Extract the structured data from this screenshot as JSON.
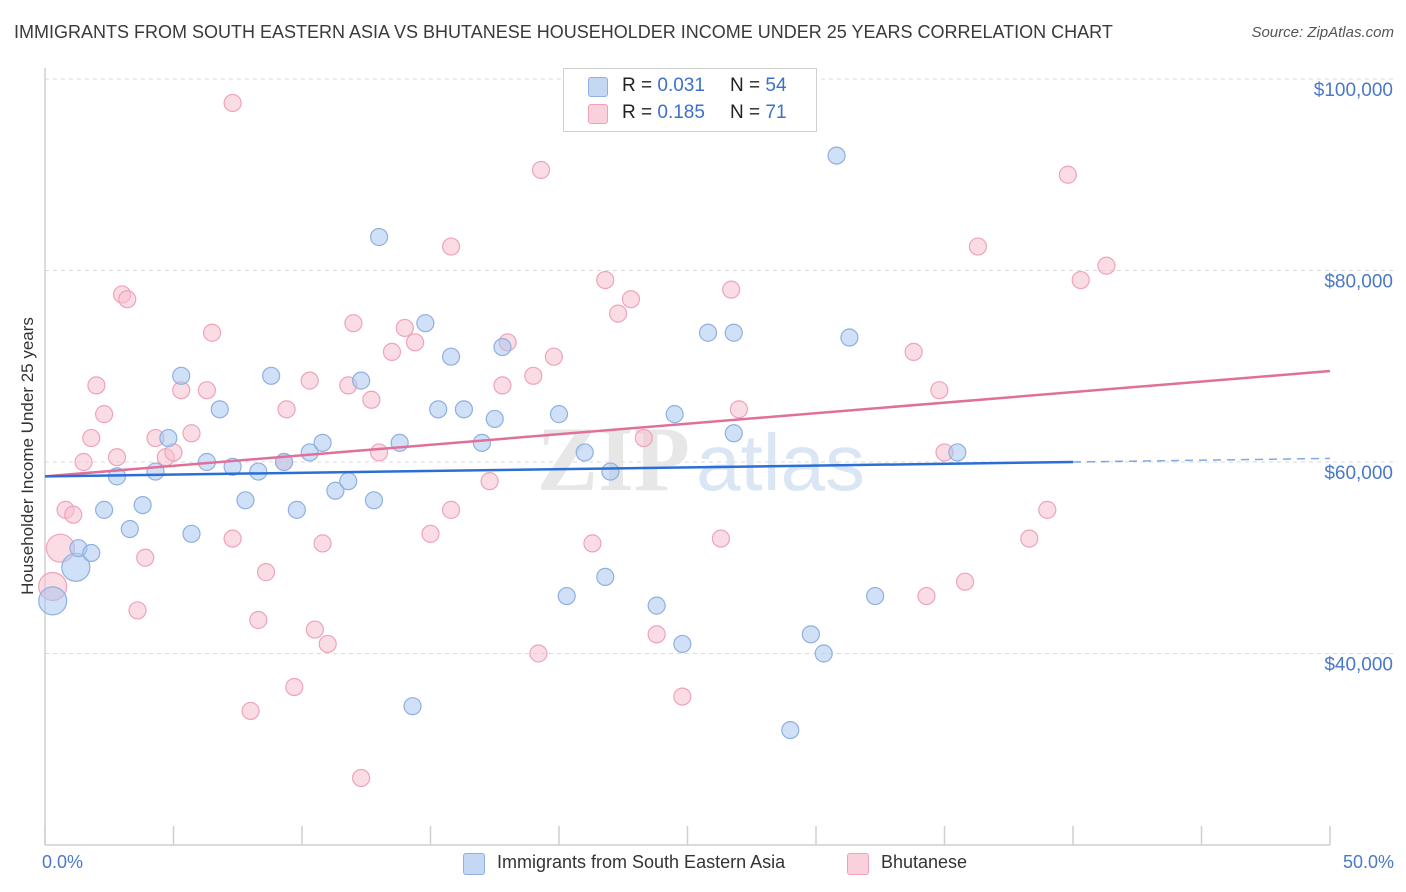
{
  "title": "IMMIGRANTS FROM SOUTH EASTERN ASIA VS BHUTANESE HOUSEHOLDER INCOME UNDER 25 YEARS CORRELATION CHART",
  "source": "Source: ZipAtlas.com",
  "watermark": "ZIPatlas",
  "colors": {
    "blue_fill": "#a9c6ee",
    "blue_stroke": "#8fb0e0",
    "blue_line": "#2b6fd6",
    "pink_fill": "#f6bfd0",
    "pink_stroke": "#efa3bb",
    "pink_line": "#e0709a",
    "tick_label": "#4a78c9",
    "grid": "#d9d9d9"
  },
  "legend": {
    "rows": [
      {
        "series": "blue",
        "r_label": "R =",
        "r_value": "0.031",
        "n_label": "N =",
        "n_value": "54"
      },
      {
        "series": "pink",
        "r_label": "R =",
        "r_value": "0.185",
        "n_label": "N =",
        "n_value": "71"
      }
    ]
  },
  "bottom_legend": [
    {
      "series": "blue",
      "label": "Immigrants from South Eastern Asia"
    },
    {
      "series": "pink",
      "label": "Bhutanese"
    }
  ],
  "chart_data": {
    "type": "scatter",
    "title": "IMMIGRANTS FROM SOUTH EASTERN ASIA VS BHUTANESE HOUSEHOLDER INCOME UNDER 25 YEARS CORRELATION CHART",
    "xlabel": "",
    "ylabel": "Householder Income Under 25 years",
    "xlim": [
      0,
      50
    ],
    "ylim": [
      20000,
      102000
    ],
    "x_tick_labels": [
      "0.0%",
      "50.0%"
    ],
    "y_ticks": [
      40000,
      60000,
      80000,
      100000
    ],
    "y_tick_labels": [
      "$40,000",
      "$60,000",
      "$80,000",
      "$100,000"
    ],
    "grid": true,
    "legend_position": "top-center",
    "series": [
      {
        "name": "Immigrants from South Eastern Asia",
        "color_key": "blue",
        "R": 0.031,
        "N": 54,
        "trend": {
          "x": [
            0,
            40
          ],
          "y": [
            58500,
            60000
          ],
          "dashed_to_x": 50
        },
        "points": [
          [
            0.3,
            45500,
            "large"
          ],
          [
            1.2,
            49000,
            "large"
          ],
          [
            1.3,
            51000
          ],
          [
            1.8,
            50500
          ],
          [
            2.3,
            55000
          ],
          [
            2.8,
            58500
          ],
          [
            3.3,
            53000
          ],
          [
            3.8,
            55500
          ],
          [
            4.3,
            59000
          ],
          [
            4.8,
            62500
          ],
          [
            5.3,
            69000
          ],
          [
            5.7,
            52500
          ],
          [
            6.3,
            60000
          ],
          [
            6.8,
            65500
          ],
          [
            7.3,
            59500
          ],
          [
            7.8,
            56000
          ],
          [
            8.3,
            59000
          ],
          [
            8.8,
            69000
          ],
          [
            9.3,
            60000
          ],
          [
            9.8,
            55000
          ],
          [
            10.3,
            61000
          ],
          [
            10.8,
            62000
          ],
          [
            11.3,
            57000
          ],
          [
            11.8,
            58000
          ],
          [
            12.3,
            68500
          ],
          [
            12.8,
            56000
          ],
          [
            13.0,
            83500
          ],
          [
            13.8,
            62000
          ],
          [
            14.3,
            34500
          ],
          [
            14.8,
            74500
          ],
          [
            15.3,
            65500
          ],
          [
            15.8,
            71000
          ],
          [
            16.3,
            65500
          ],
          [
            17.0,
            62000
          ],
          [
            17.5,
            64500
          ],
          [
            17.8,
            72000
          ],
          [
            20.0,
            65000
          ],
          [
            20.3,
            46000
          ],
          [
            21.0,
            61000
          ],
          [
            21.8,
            48000
          ],
          [
            22.0,
            59000
          ],
          [
            23.8,
            45000
          ],
          [
            24.5,
            65000
          ],
          [
            24.8,
            41000
          ],
          [
            25.8,
            73500
          ],
          [
            26.8,
            63000
          ],
          [
            26.8,
            73500
          ],
          [
            29.0,
            32000
          ],
          [
            29.8,
            42000
          ],
          [
            30.3,
            40000
          ],
          [
            30.8,
            92000
          ],
          [
            31.3,
            73000
          ],
          [
            32.3,
            46000
          ],
          [
            35.5,
            61000
          ]
        ]
      },
      {
        "name": "Bhutanese",
        "color_key": "pink",
        "R": 0.185,
        "N": 71,
        "trend": {
          "x": [
            0,
            50
          ],
          "y": [
            58500,
            69500
          ]
        },
        "points": [
          [
            0.3,
            47000,
            "large"
          ],
          [
            0.6,
            51000,
            "large"
          ],
          [
            0.8,
            55000
          ],
          [
            1.1,
            54500
          ],
          [
            1.5,
            60000
          ],
          [
            1.8,
            62500
          ],
          [
            2.0,
            68000
          ],
          [
            2.3,
            65000
          ],
          [
            2.8,
            60500
          ],
          [
            3.0,
            77500
          ],
          [
            3.2,
            77000
          ],
          [
            3.6,
            44500
          ],
          [
            3.9,
            50000
          ],
          [
            4.3,
            62500
          ],
          [
            4.7,
            60500
          ],
          [
            5.0,
            61000
          ],
          [
            5.3,
            67500
          ],
          [
            5.7,
            63000
          ],
          [
            6.3,
            67500
          ],
          [
            6.5,
            73500
          ],
          [
            7.3,
            52000
          ],
          [
            7.3,
            97500
          ],
          [
            8.0,
            34000
          ],
          [
            8.3,
            43500
          ],
          [
            8.6,
            48500
          ],
          [
            9.3,
            60000
          ],
          [
            9.4,
            65500
          ],
          [
            9.7,
            36500
          ],
          [
            10.3,
            68500
          ],
          [
            10.5,
            42500
          ],
          [
            10.8,
            51500
          ],
          [
            11.0,
            41000
          ],
          [
            11.8,
            68000
          ],
          [
            12.0,
            74500
          ],
          [
            12.3,
            27000
          ],
          [
            12.7,
            66500
          ],
          [
            13.0,
            61000
          ],
          [
            13.5,
            71500
          ],
          [
            14.0,
            74000
          ],
          [
            14.4,
            72500
          ],
          [
            15.0,
            52500
          ],
          [
            15.8,
            55000
          ],
          [
            15.8,
            82500
          ],
          [
            17.3,
            58000
          ],
          [
            17.8,
            68000
          ],
          [
            18.0,
            72500
          ],
          [
            19.0,
            69000
          ],
          [
            19.2,
            40000
          ],
          [
            19.3,
            90500
          ],
          [
            19.8,
            71000
          ],
          [
            21.3,
            51500
          ],
          [
            21.8,
            79000
          ],
          [
            22.3,
            75500
          ],
          [
            22.8,
            77000
          ],
          [
            23.3,
            62500
          ],
          [
            23.8,
            42000
          ],
          [
            24.8,
            35500
          ],
          [
            26.3,
            52000
          ],
          [
            26.7,
            78000
          ],
          [
            27.0,
            65500
          ],
          [
            33.8,
            71500
          ],
          [
            34.3,
            46000
          ],
          [
            34.8,
            67500
          ],
          [
            35.0,
            61000
          ],
          [
            35.8,
            47500
          ],
          [
            36.3,
            82500
          ],
          [
            38.3,
            52000
          ],
          [
            39.0,
            55000
          ],
          [
            39.8,
            90000
          ],
          [
            40.3,
            79000
          ],
          [
            41.3,
            80500
          ]
        ]
      }
    ]
  }
}
